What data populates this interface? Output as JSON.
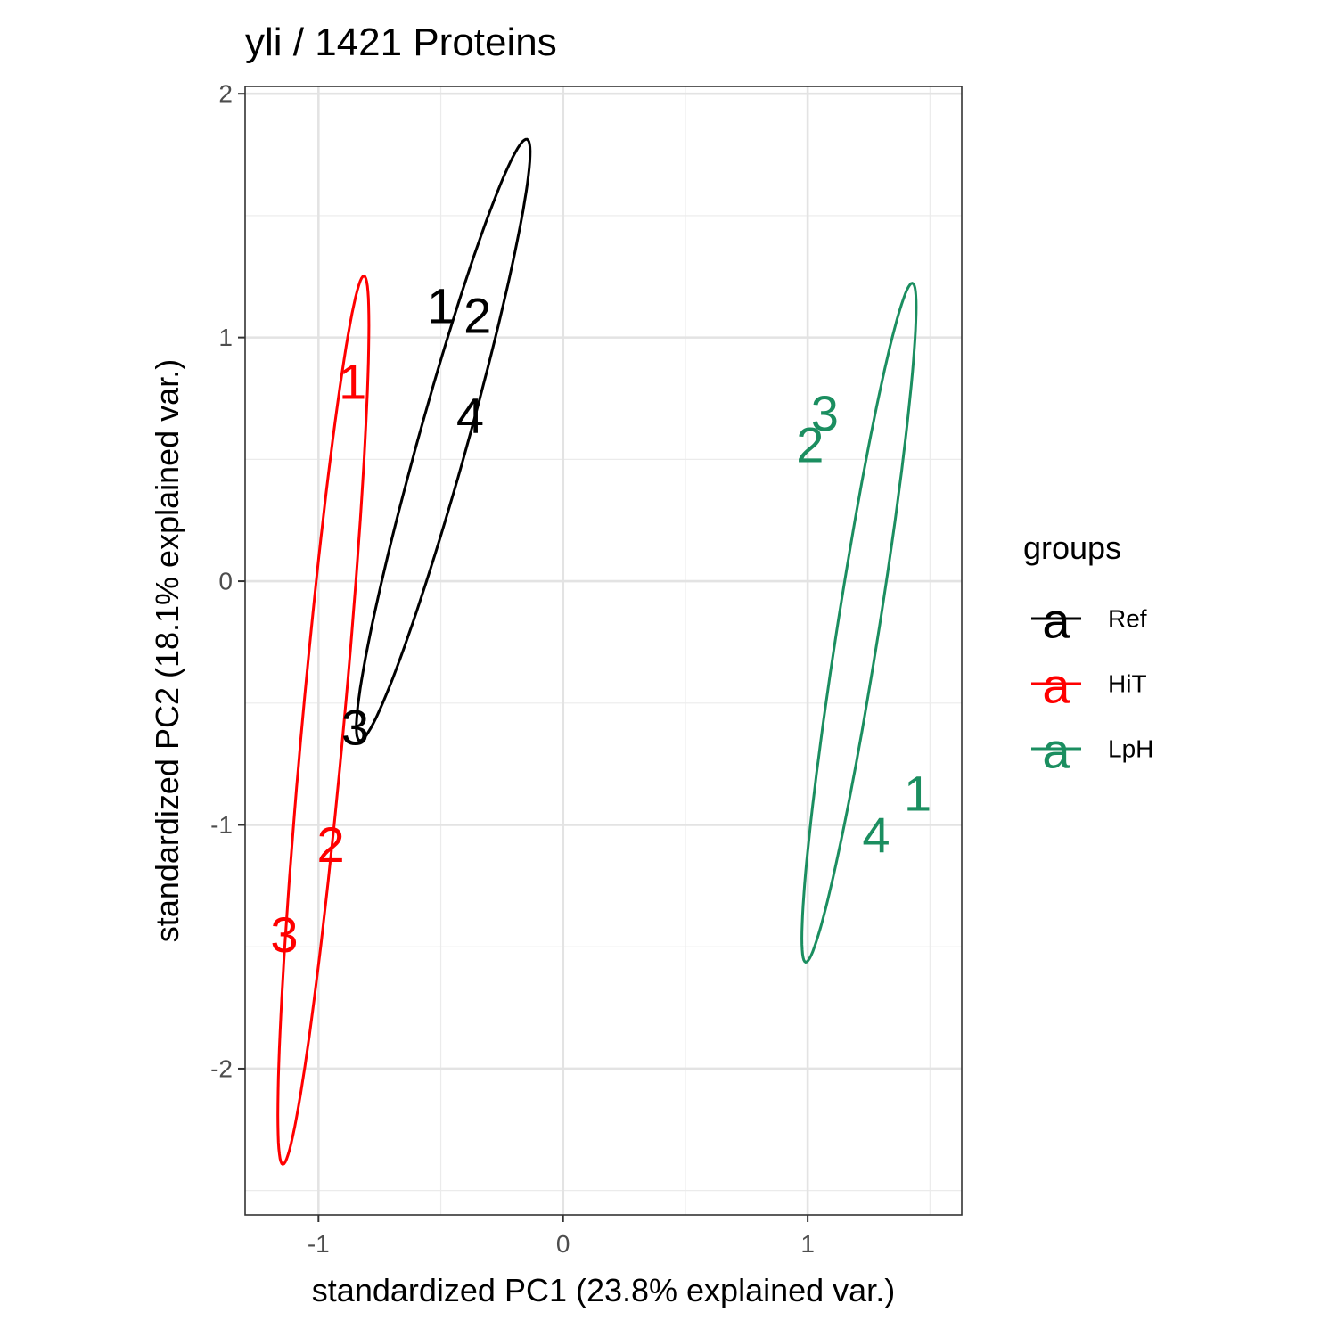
{
  "chart_data": {
    "type": "scatter",
    "title": "yli /  1421  Proteins",
    "xlabel": "standardized PC1 (23.8% explained var.)",
    "ylabel": "standardized PC2 (18.1% explained var.)",
    "xlim": [
      -1.3,
      1.63
    ],
    "ylim": [
      -2.6,
      2.03
    ],
    "x_ticks": [
      -1,
      0,
      1
    ],
    "x_tick_labels": [
      "-1",
      "0",
      "1"
    ],
    "y_ticks": [
      -2,
      -1,
      0,
      1,
      2
    ],
    "y_tick_labels": [
      "-2",
      "-1",
      "0",
      "1",
      "2"
    ],
    "grid": true,
    "legend": {
      "title": "groups",
      "placement": "right",
      "entries": [
        "Ref",
        "HiT",
        "LpH"
      ]
    },
    "series": [
      {
        "name": "Ref",
        "color": "#000000",
        "points": [
          {
            "label": "1",
            "x": -0.5,
            "y": 1.13
          },
          {
            "label": "2",
            "x": -0.35,
            "y": 1.09
          },
          {
            "label": "4",
            "x": -0.38,
            "y": 0.68
          },
          {
            "label": "3",
            "x": -0.85,
            "y": -0.6
          }
        ],
        "ellipse": {
          "cx": -0.49,
          "cy": 0.58,
          "rx": 1.28,
          "ry": 0.1,
          "angle_deg": 74.5
        }
      },
      {
        "name": "HiT",
        "color": "#ff0000",
        "points": [
          {
            "label": "1",
            "x": -0.86,
            "y": 0.82
          },
          {
            "label": "2",
            "x": -0.95,
            "y": -1.08
          },
          {
            "label": "3",
            "x": -1.14,
            "y": -1.45
          }
        ],
        "ellipse": {
          "cx": -0.98,
          "cy": -0.57,
          "rx": 1.83,
          "ry": 0.085,
          "angle_deg": 84.8
        }
      },
      {
        "name": "LpH",
        "color": "#1b8e60",
        "points": [
          {
            "label": "3",
            "x": 1.07,
            "y": 0.69
          },
          {
            "label": "2",
            "x": 1.01,
            "y": 0.56
          },
          {
            "label": "1",
            "x": 1.45,
            "y": -0.87
          },
          {
            "label": "4",
            "x": 1.28,
            "y": -1.04
          }
        ],
        "ellipse": {
          "cx": 1.21,
          "cy": -0.17,
          "rx": 1.41,
          "ry": 0.085,
          "angle_deg": 81.1
        }
      }
    ]
  }
}
